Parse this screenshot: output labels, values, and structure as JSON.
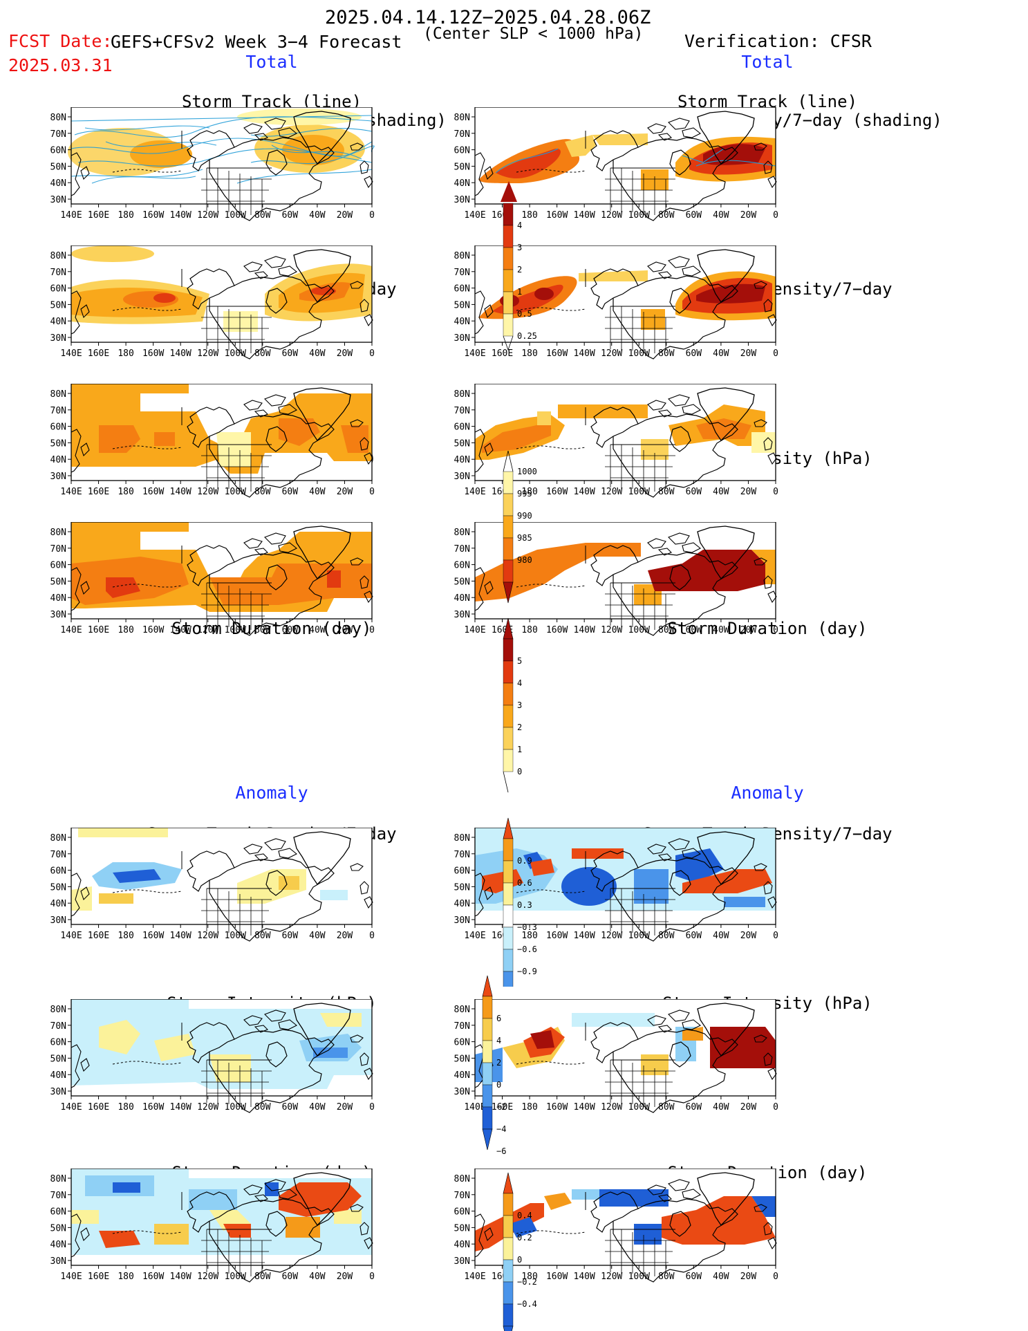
{
  "header": {
    "date_range": "2025.04.14.12Z−2025.04.28.06Z",
    "fcst_label": "FCST Date:",
    "fcst_date": "2025.03.31",
    "forecast_title": "GEFS+CFSv2 Week 3−4 Forecast",
    "criterion": "(Center SLP < 1000 hPa)",
    "verification": "Verification: CFSR"
  },
  "sections": {
    "total": "Total",
    "anomaly": "Anomaly"
  },
  "panel_titles": {
    "track_line": "Storm Track (line)",
    "track_shading": "Storm Track Density/7−day (shading)",
    "density": "Storm Track Density/7−day",
    "intensity": "Storm Intensity (hPa)",
    "duration": "Storm Duration (day)"
  },
  "axes": {
    "lon_labels": [
      "140E",
      "160E",
      "180",
      "160W",
      "140W",
      "120W",
      "100W",
      "80W",
      "60W",
      "40W",
      "20W",
      "0"
    ],
    "lat_labels": [
      "80N",
      "70N",
      "60N",
      "50N",
      "40N",
      "30N"
    ]
  },
  "colorbars": {
    "density": [
      "4",
      "3",
      "2",
      "1",
      "0.5",
      "0.25"
    ],
    "intensity": [
      "1000",
      "995",
      "990",
      "985",
      "980"
    ],
    "duration": [
      "5",
      "4",
      "3",
      "2",
      "1",
      "0"
    ],
    "density_anom": [
      "0.9",
      "0.6",
      "0.3",
      "−0.3",
      "−0.6",
      "−0.9"
    ],
    "intensity_anom": [
      "6",
      "4",
      "2",
      "0",
      "−2",
      "−4",
      "−6"
    ],
    "duration_anom": [
      "0.4",
      "0.2",
      "0",
      "−0.2",
      "−0.4"
    ]
  },
  "colors": {
    "track_line": "#1e9bd7",
    "total_scale": [
      "#fff6a8",
      "#fbd25a",
      "#f9a81b",
      "#f47e12",
      "#e23a10",
      "#a40f0a"
    ],
    "anom_neg": [
      "#1f5fd6",
      "#4a94ea",
      "#8fd0f5",
      "#c9f0fb"
    ],
    "anom_pos": [
      "#fbf29a",
      "#f7cc4c",
      "#f59a19",
      "#ea4a14"
    ]
  }
}
